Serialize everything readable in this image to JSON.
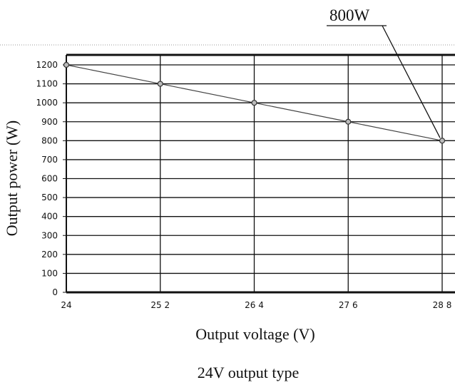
{
  "chart_data": {
    "type": "line",
    "x": [
      24,
      25.2,
      26.4,
      27.6,
      28.8
    ],
    "x_tick_labels": [
      "24",
      "25 2",
      "26 4",
      "27 6",
      "28 8"
    ],
    "y_ticks": [
      0,
      100,
      200,
      300,
      400,
      500,
      600,
      700,
      800,
      900,
      1000,
      1100,
      1200
    ],
    "series": [
      {
        "values": [
          1200,
          1100,
          1000,
          900,
          800
        ]
      }
    ],
    "title": "",
    "xlabel": "Output voltage (V)",
    "ylabel": "Output power (W)",
    "xlim": [
      24,
      28.8
    ],
    "ylim": [
      0,
      1200
    ],
    "grid": true,
    "annotation": {
      "text": "800W",
      "x": 28.8,
      "y": 800
    },
    "caption": "24V output type"
  }
}
